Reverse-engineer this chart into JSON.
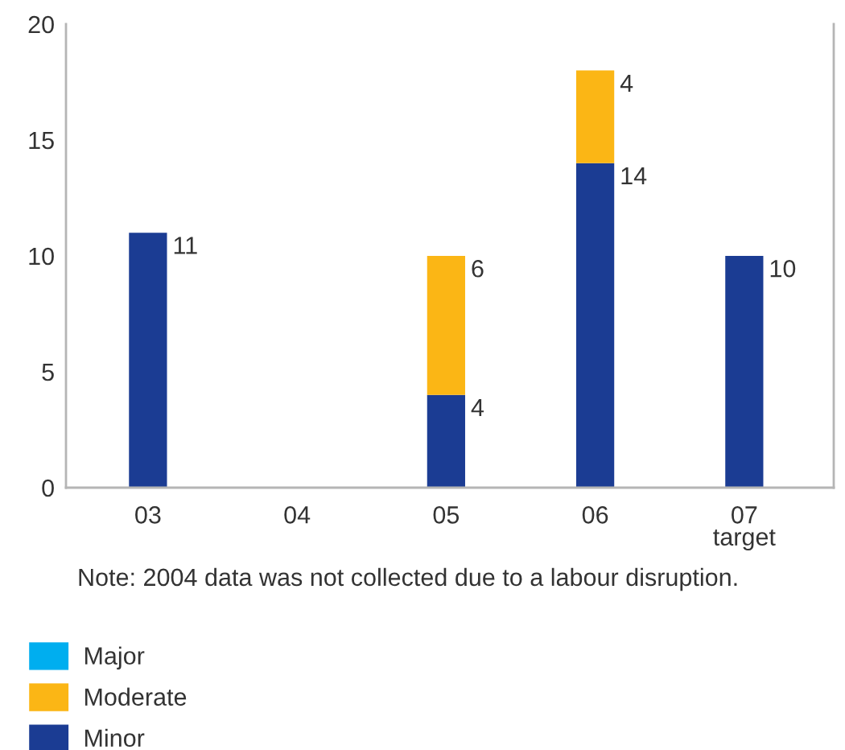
{
  "chart_data": {
    "type": "bar",
    "stacked": true,
    "categories": [
      "03",
      "04",
      "05",
      "06",
      "07\ntarget"
    ],
    "series": [
      {
        "name": "Minor",
        "color": "#1b3c93",
        "values": [
          11,
          null,
          4,
          14,
          10
        ]
      },
      {
        "name": "Moderate",
        "color": "#fbb615",
        "values": [
          null,
          null,
          6,
          4,
          null
        ]
      },
      {
        "name": "Major",
        "color": "#00aeef",
        "values": [
          null,
          null,
          null,
          null,
          null
        ]
      }
    ],
    "ylim": [
      0,
      20
    ],
    "yticks": [
      0,
      5,
      10,
      15,
      20
    ],
    "data_labels": true,
    "legend": "bottom left",
    "annotations": [
      "Note: 2004 data was not collected due to a labour disruption."
    ]
  }
}
